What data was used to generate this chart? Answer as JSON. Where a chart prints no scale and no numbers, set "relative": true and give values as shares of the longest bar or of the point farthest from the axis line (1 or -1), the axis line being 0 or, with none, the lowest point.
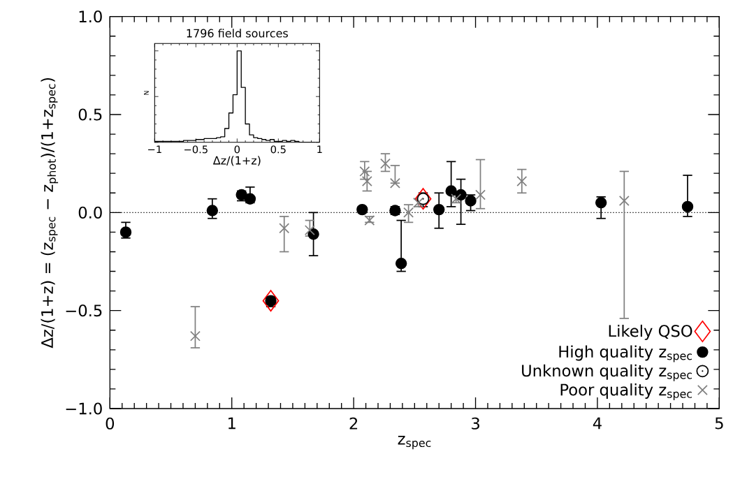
{
  "chart_data": [
    {
      "type": "scatter",
      "xlabel": "z$_{spec}$",
      "ylabel": "Δz/(1+z) = (z$_{spec}$ − z$_{phot}$)/(1+z$_{spec}$)",
      "xlim": [
        0,
        5
      ],
      "ylim": [
        -1.0,
        1.0
      ],
      "xticks": [
        0,
        1,
        2,
        3,
        4,
        5
      ],
      "yticks": [
        {
          "value": -1.0,
          "label": "−1.0"
        },
        {
          "value": -0.5,
          "label": "−0.5"
        },
        {
          "value": 0.0,
          "label": "0.0"
        },
        {
          "value": 0.5,
          "label": "0.5"
        },
        {
          "value": 1.0,
          "label": "1.0"
        }
      ],
      "legend": "bottom right",
      "grid": false,
      "ref_lines": [
        {
          "axis": "y",
          "value": 0,
          "color": "#000000",
          "line_style": "dotted"
        }
      ],
      "series": [
        {
          "name": "Likely QSO",
          "color": "#ff0000",
          "marker": "diamond",
          "x": [
            1.32,
            2.57
          ],
          "values": [
            -0.45,
            0.07
          ]
        },
        {
          "name": "High quality z$_{spec}$",
          "color": "#000000",
          "marker": "circle",
          "x": [
            0.13,
            0.84,
            1.08,
            1.15,
            1.32,
            1.67,
            2.07,
            2.34,
            2.39,
            2.7,
            2.8,
            2.88,
            2.96,
            4.03,
            4.74
          ],
          "values": [
            -0.1,
            0.01,
            0.09,
            0.07,
            -0.45,
            -0.11,
            0.015,
            0.01,
            -0.26,
            0.015,
            0.11,
            0.09,
            0.06,
            0.05,
            0.03
          ],
          "errors": [
            [
              -0.13,
              -0.05
            ],
            [
              -0.03,
              0.07
            ],
            [
              0.06,
              0.11
            ],
            [
              0.05,
              0.13
            ],
            [
              -0.48,
              -0.43
            ],
            [
              -0.22,
              0.0
            ],
            [
              0.0,
              0.03
            ],
            [
              -0.01,
              0.03
            ],
            [
              -0.3,
              -0.04
            ],
            [
              -0.08,
              0.1
            ],
            [
              0.03,
              0.26
            ],
            [
              -0.06,
              0.17
            ],
            [
              0.01,
              0.09
            ],
            [
              -0.03,
              0.08
            ],
            [
              -0.02,
              0.19
            ]
          ]
        },
        {
          "name": "Unknown quality z$_{spec}$",
          "color": "#000000",
          "x": [
            2.57
          ],
          "values": [
            0.07
          ],
          "errors": [
            [
              0.03,
              0.1
            ]
          ]
        },
        {
          "name": "Poor quality z$_{spec}$",
          "color": "#808080",
          "marker": "cross",
          "x": [
            0.7,
            1.43,
            1.64,
            2.09,
            2.11,
            2.13,
            2.26,
            2.34,
            2.45,
            2.53,
            2.84,
            3.04,
            3.38,
            4.22
          ],
          "values": [
            -0.63,
            -0.08,
            -0.09,
            0.21,
            0.16,
            -0.04,
            0.25,
            0.15,
            0.0,
            0.05,
            0.07,
            0.09,
            0.16,
            0.06
          ],
          "errors": [
            [
              -0.69,
              -0.48
            ],
            [
              -0.2,
              -0.02
            ],
            [
              -0.12,
              -0.04
            ],
            [
              0.17,
              0.26
            ],
            [
              0.11,
              0.21
            ],
            [
              -0.05,
              -0.02
            ],
            [
              0.21,
              0.3
            ],
            [
              0.15,
              0.24
            ],
            [
              -0.05,
              0.04
            ],
            [
              0.03,
              0.07
            ],
            [
              0.05,
              0.09
            ],
            [
              0.02,
              0.27
            ],
            [
              0.1,
              0.22
            ],
            [
              -0.54,
              0.21
            ]
          ]
        }
      ]
    },
    {
      "type": "step",
      "title": "1796 field sources",
      "xlabel": "Δz/(1+z)",
      "ylabel": "N",
      "relative": true,
      "color": "#000000",
      "xlim": [
        -1,
        1
      ],
      "xticks": [
        {
          "value": -1,
          "label": "−1"
        },
        {
          "value": -0.5,
          "label": "−0.5"
        },
        {
          "value": 0,
          "label": "0"
        },
        {
          "value": 0.5,
          "label": "0.5"
        },
        {
          "value": 1,
          "label": "1"
        }
      ],
      "x": [
        -1.0,
        -0.95,
        -0.9,
        -0.85,
        -0.8,
        -0.75,
        -0.7,
        -0.65,
        -0.6,
        -0.55,
        -0.5,
        -0.45,
        -0.4,
        -0.35,
        -0.3,
        -0.25,
        -0.2,
        -0.15,
        -0.1,
        -0.05,
        0.0,
        0.05,
        0.1,
        0.15,
        0.2,
        0.25,
        0.3,
        0.35,
        0.4,
        0.45,
        0.5,
        0.55,
        0.6,
        0.65,
        0.7,
        0.75,
        0.8,
        0.85,
        0.9,
        0.95
      ],
      "values": [
        0.01,
        0.01,
        0.01,
        0.01,
        0.01,
        0.01,
        0.01,
        0.02,
        0.02,
        0.02,
        0.03,
        0.03,
        0.04,
        0.04,
        0.04,
        0.05,
        0.06,
        0.15,
        0.32,
        0.52,
        1.0,
        0.6,
        0.2,
        0.08,
        0.05,
        0.04,
        0.03,
        0.02,
        0.03,
        0.01,
        0.01,
        0.02,
        0.01,
        0.02,
        0.01,
        0,
        0,
        0,
        0,
        0
      ]
    }
  ]
}
